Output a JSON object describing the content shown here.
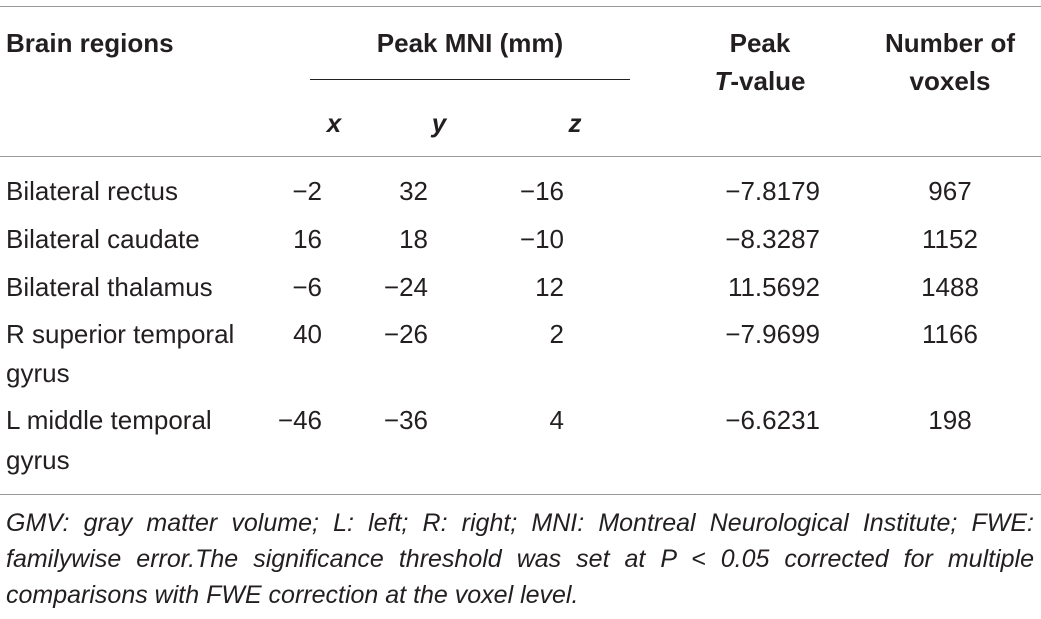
{
  "table": {
    "header": {
      "col_region": "Brain regions",
      "col_mni": "Peak MNI (mm)",
      "col_t_line1": "Peak",
      "col_t_italic": "T",
      "col_t_rest": "-value",
      "col_voxels_line1": "Number of",
      "col_voxels_line2": "voxels",
      "sub_x": "x",
      "sub_y": "y",
      "sub_z": "z"
    },
    "rows": [
      {
        "region": "Bilateral rectus",
        "region2": "",
        "x": "−2",
        "y": "32",
        "z": "−16",
        "t": "−7.8179",
        "voxels": "967"
      },
      {
        "region": "Bilateral caudate",
        "region2": "",
        "x": "16",
        "y": "18",
        "z": "−10",
        "t": "−8.3287",
        "voxels": "1152"
      },
      {
        "region": "Bilateral thalamus",
        "region2": "",
        "x": "−6",
        "y": "−24",
        "z": "12",
        "t": "11.5692",
        "voxels": "1488"
      },
      {
        "region": "R superior temporal",
        "region2": "gyrus",
        "x": "40",
        "y": "−26",
        "z": "2",
        "t": "−7.9699",
        "voxels": "1166"
      },
      {
        "region": "L middle temporal",
        "region2": "gyrus",
        "x": "−46",
        "y": "−36",
        "z": "4",
        "t": "−6.6231",
        "voxels": "198"
      }
    ],
    "footnote": "GMV: gray matter volume; L: left; R: right; MNI: Montreal Neurological Institute; FWE: familywise error.The significance threshold was set at P < 0.05 corrected for multiple comparisons with FWE correction at the voxel level."
  }
}
